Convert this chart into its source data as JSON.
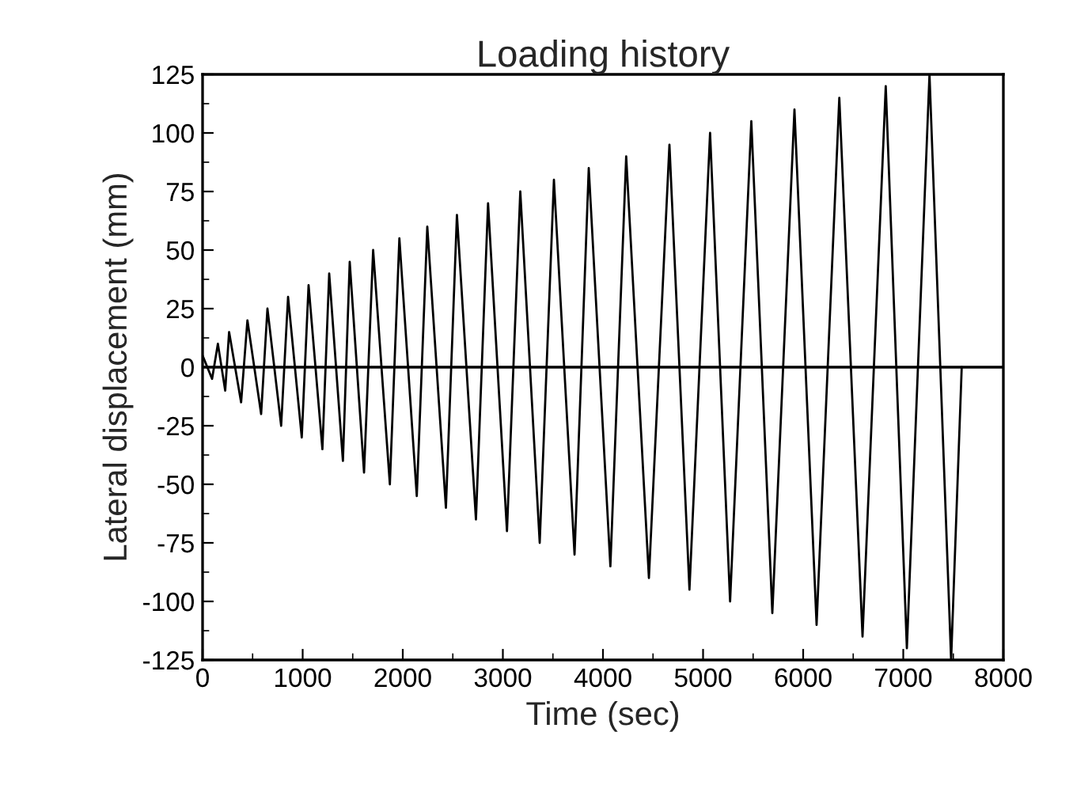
{
  "chart_data": {
    "type": "line",
    "title": "Loading history",
    "xlabel": "Time (sec)",
    "ylabel": "Lateral displacement (mm)",
    "series": [
      {
        "color": "#000000",
        "x": [
          0,
          95,
          153,
          226,
          265,
          385,
          448,
          585,
          648,
          785,
          854,
          991,
          1059,
          1197,
          1265,
          1402,
          1470,
          1613,
          1704,
          1871,
          1966,
          2140,
          2245,
          2431,
          2541,
          2731,
          2852,
          3041,
          3174,
          3368,
          3510,
          3716,
          3858,
          4074,
          4232,
          4459,
          4664,
          4864,
          5070,
          5270,
          5482,
          5692,
          5913,
          6134,
          6361,
          6593,
          6825,
          7036,
          7262,
          7478,
          7584
        ],
        "values": [
          5,
          -5,
          10,
          -10,
          15,
          -15,
          20,
          -20,
          25,
          -25,
          30,
          -30,
          35,
          -35,
          40,
          -40,
          45,
          -45,
          50,
          -50,
          55,
          -55,
          60,
          -60,
          65,
          -65,
          70,
          -70,
          75,
          -75,
          80,
          -80,
          85,
          -85,
          90,
          -90,
          95,
          -95,
          100,
          -100,
          105,
          -105,
          110,
          -110,
          115,
          -115,
          120,
          -120,
          125,
          -125,
          0
        ]
      }
    ],
    "xlim": [
      0,
      8000
    ],
    "xticks": [
      0,
      1000,
      2000,
      3000,
      4000,
      5000,
      6000,
      7000,
      8000
    ],
    "ylim": [
      -125,
      125
    ],
    "yticks": [
      -125,
      -100,
      -75,
      -50,
      -25,
      0,
      25,
      50,
      75,
      100,
      125
    ],
    "ref_lines": [
      {
        "axis": "y",
        "value": 0,
        "color": "#000000"
      }
    ],
    "marker": "none",
    "line_style": "solid",
    "grid": false,
    "legend": false
  }
}
